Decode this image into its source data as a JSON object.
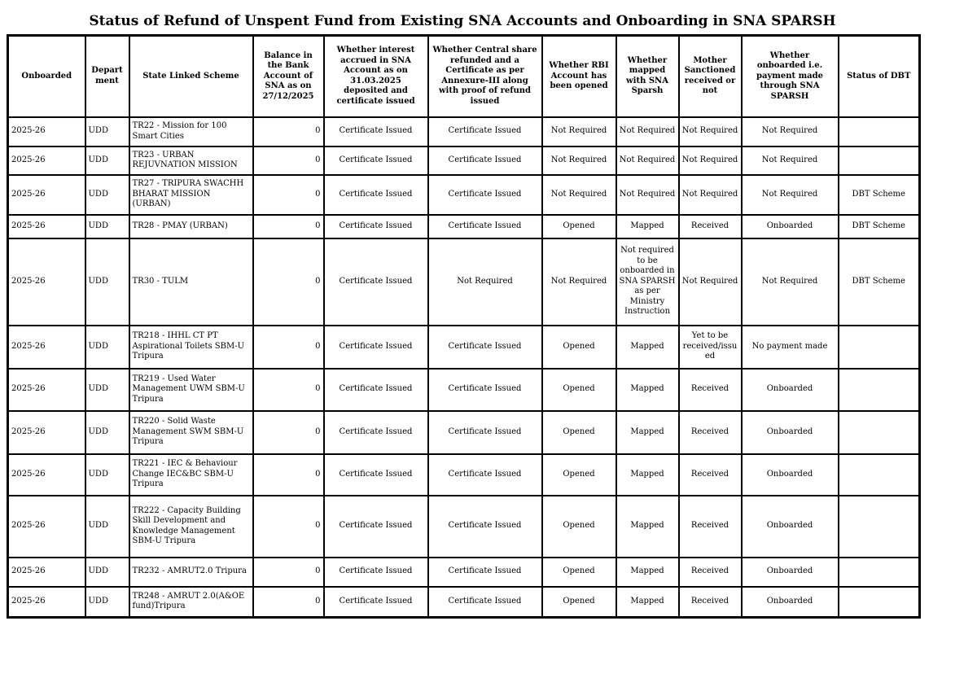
{
  "title": "Status of Refund of Unspent Fund from Existing SNA Accounts and Onboarding in SNA SPARSH",
  "table": {
    "columns": [
      "Onboarded",
      "Department",
      "State Linked Scheme",
      "Balance in the Bank Account of SNA as on 27/12/2025",
      "Whether interest accrued in SNA Account as on 31.03.2025 deposited and certificate issued",
      "Whether Central share refunded and a Certificate as per Annexure-III along with proof of refund issued",
      "Whether RBI Account has been opened",
      "Whether mapped with SNA Sparsh",
      "Mother Sanctioned received or not",
      "Whether onboarded i.e. payment made through SNA SPARSH",
      "Status of DBT"
    ],
    "rows": [
      [
        "2025-26",
        "UDD",
        "TR22 - Mission for 100 Smart Cities",
        "0",
        "Certificate Issued",
        "Certificate Issued",
        "Not Required",
        "Not Required",
        "Not Required",
        "Not Required",
        ""
      ],
      [
        "2025-26",
        "UDD",
        "TR23 - URBAN REJUVNATION MISSION",
        "0",
        "Certificate Issued",
        "Certificate Issued",
        "Not Required",
        "Not Required",
        "Not Required",
        "Not Required",
        ""
      ],
      [
        "2025-26",
        "UDD",
        "TR27 - TRIPURA SWACHH BHARAT MISSION (URBAN)",
        "0",
        "Certificate Issued",
        "Certificate Issued",
        "Not Required",
        "Not Required",
        "Not Required",
        "Not Required",
        "DBT Scheme"
      ],
      [
        "2025-26",
        "UDD",
        "TR28 - PMAY (URBAN)",
        "0",
        "Certificate Issued",
        "Certificate Issued",
        "Opened",
        "Mapped",
        "Received",
        "Onboarded",
        "DBT Scheme"
      ],
      [
        "2025-26",
        "UDD",
        "TR30 - TULM",
        "0",
        "Certificate Issued",
        "Not Required",
        "Not Required",
        "Not required to be onboarded in SNA SPARSH as per Ministry Instruction",
        "Not Required",
        "Not Required",
        "DBT Scheme"
      ],
      [
        "2025-26",
        "UDD",
        "TR218 - IHHL CT PT Aspirational Toilets SBM-U Tripura",
        "0",
        "Certificate Issued",
        "Certificate Issued",
        "Opened",
        "Mapped",
        "Yet to be received/issued",
        "No payment made",
        ""
      ],
      [
        "2025-26",
        "UDD",
        "TR219 - Used Water Management UWM SBM-U Tripura",
        "0",
        "Certificate Issued",
        "Certificate Issued",
        "Opened",
        "Mapped",
        "Received",
        "Onboarded",
        ""
      ],
      [
        "2025-26",
        "UDD",
        "TR220 - Solid Waste Management SWM SBM-U Tripura",
        "0",
        "Certificate Issued",
        "Certificate Issued",
        "Opened",
        "Mapped",
        "Received",
        "Onboarded",
        ""
      ],
      [
        "2025-26",
        "UDD",
        "TR221 - IEC & Behaviour Change IEC&BC SBM-U Tripura",
        "0",
        "Certificate Issued",
        "Certificate Issued",
        "Opened",
        "Mapped",
        "Received",
        "Onboarded",
        ""
      ],
      [
        "2025-26",
        "UDD",
        "TR222 - Capacity Building Skill Development and Knowledge Management SBM-U Tripura",
        "0",
        "Certificate Issued",
        "Certificate Issued",
        "Opened",
        "Mapped",
        "Received",
        "Onboarded",
        ""
      ],
      [
        "2025-26",
        "UDD",
        "TR232 - AMRUT2.0 Tripura",
        "0",
        "Certificate Issued",
        "Certificate Issued",
        "Opened",
        "Mapped",
        "Received",
        "Onboarded",
        ""
      ],
      [
        "2025-26",
        "UDD",
        "TR248 - AMRUT 2.0(A&OE fund)Tripura",
        "0",
        "Certificate Issued",
        "Certificate Issued",
        "Opened",
        "Mapped",
        "Received",
        "Onboarded",
        ""
      ]
    ]
  }
}
